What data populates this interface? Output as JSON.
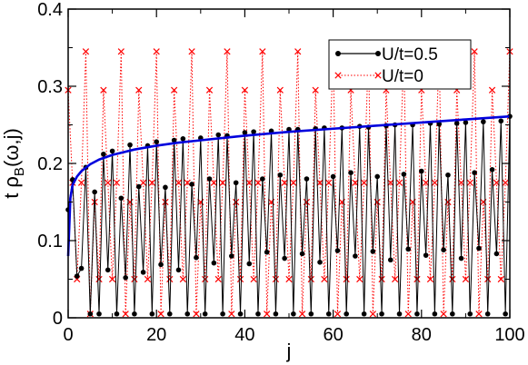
{
  "chart_data": {
    "type": "line",
    "xlabel": "j",
    "ylabel": {
      "t": "t ρ",
      "sub": "B",
      "rest": "(ω,j)"
    },
    "xlim": [
      0,
      100
    ],
    "ylim": [
      0,
      0.4
    ],
    "xticks": [
      0,
      20,
      40,
      60,
      80,
      100
    ],
    "xtick_labels": [
      "0",
      "20",
      "40",
      "60",
      "80",
      "100"
    ],
    "yticks": [
      0,
      0.1,
      0.2,
      0.3,
      0.4
    ],
    "ytick_labels": [
      "0",
      "0.1",
      "0.2",
      "0.3",
      "0.4"
    ],
    "grid": false,
    "legend_position": "top-right",
    "series": [
      {
        "name": "U/t=0.5",
        "color": "#000000",
        "style": "solid line with filled circles",
        "x": [
          0,
          1,
          2,
          3,
          4,
          5,
          6,
          7,
          8,
          9,
          10,
          11,
          12,
          13,
          14,
          15,
          16,
          17,
          18,
          19,
          20,
          21,
          22,
          23,
          24,
          25,
          26,
          27,
          28,
          29,
          30,
          31,
          32,
          33,
          34,
          35,
          36,
          37,
          38,
          39,
          40,
          41,
          42,
          43,
          44,
          45,
          46,
          47,
          48,
          49,
          50,
          51,
          52,
          53,
          54,
          55,
          56,
          57,
          58,
          59,
          60,
          61,
          62,
          63,
          64,
          65,
          66,
          67,
          68,
          69,
          70,
          71,
          72,
          73,
          74,
          75,
          76,
          77,
          78,
          79,
          80,
          81,
          82,
          83,
          84,
          85,
          86,
          87,
          88,
          89,
          90,
          91,
          92,
          93,
          94,
          95,
          96,
          97,
          98,
          99,
          100
        ],
        "y": [
          0.14,
          0.179,
          0.054,
          0.064,
          0.195,
          0.005,
          0.163,
          0.005,
          0.212,
          0.062,
          0.216,
          0.005,
          0.155,
          0.052,
          0.224,
          0.005,
          0.17,
          0.059,
          0.223,
          0.005,
          0.228,
          0.069,
          0.169,
          0.005,
          0.23,
          0.062,
          0.232,
          0.005,
          0.173,
          0.078,
          0.233,
          0.005,
          0.18,
          0.071,
          0.237,
          0.005,
          0.236,
          0.08,
          0.175,
          0.005,
          0.24,
          0.07,
          0.241,
          0.005,
          0.18,
          0.085,
          0.242,
          0.005,
          0.185,
          0.077,
          0.244,
          0.005,
          0.244,
          0.083,
          0.18,
          0.005,
          0.245,
          0.072,
          0.246,
          0.005,
          0.183,
          0.087,
          0.246,
          0.005,
          0.188,
          0.08,
          0.248,
          0.005,
          0.247,
          0.086,
          0.183,
          0.005,
          0.249,
          0.075,
          0.25,
          0.005,
          0.186,
          0.089,
          0.25,
          0.005,
          0.19,
          0.081,
          0.252,
          0.005,
          0.251,
          0.088,
          0.185,
          0.005,
          0.252,
          0.077,
          0.253,
          0.005,
          0.188,
          0.09,
          0.254,
          0.005,
          0.192,
          0.083,
          0.255,
          0.005,
          0.261
        ]
      },
      {
        "name": "U/t=0",
        "color": "#ff0000",
        "style": "dotted line with x markers",
        "x": [
          0,
          1,
          2,
          3,
          4,
          5,
          6,
          7,
          8,
          9,
          10,
          11,
          12,
          13,
          14,
          15,
          16,
          17,
          18,
          19,
          20,
          21,
          22,
          23,
          24,
          25,
          26,
          27,
          28,
          29,
          30,
          31,
          32,
          33,
          34,
          35,
          36,
          37,
          38,
          39,
          40,
          41,
          42,
          43,
          44,
          45,
          46,
          47,
          48,
          49,
          50,
          51,
          52,
          53,
          54,
          55,
          56,
          57,
          58,
          59,
          60,
          61,
          62,
          63,
          64,
          65,
          66,
          67,
          68,
          69,
          70,
          71,
          72,
          73,
          74,
          75,
          76,
          77,
          78,
          79,
          80,
          81,
          82,
          83,
          84,
          85,
          86,
          87,
          88,
          89,
          90,
          91,
          92,
          93,
          94,
          95,
          96,
          97,
          98,
          99,
          100
        ],
        "y": [
          0.295,
          0.175,
          0.05,
          0.175,
          0.345,
          0.005,
          0.15,
          0.05,
          0.295,
          0.175,
          0.05,
          0.175,
          0.345,
          0.005,
          0.15,
          0.05,
          0.295,
          0.175,
          0.05,
          0.175,
          0.345,
          0.005,
          0.15,
          0.05,
          0.295,
          0.175,
          0.05,
          0.175,
          0.345,
          0.005,
          0.15,
          0.05,
          0.295,
          0.175,
          0.05,
          0.175,
          0.345,
          0.005,
          0.15,
          0.05,
          0.295,
          0.175,
          0.05,
          0.175,
          0.345,
          0.005,
          0.15,
          0.05,
          0.295,
          0.175,
          0.05,
          0.175,
          0.345,
          0.005,
          0.15,
          0.05,
          0.295,
          0.175,
          0.05,
          0.175,
          0.345,
          0.005,
          0.15,
          0.05,
          0.295,
          0.175,
          0.05,
          0.175,
          0.345,
          0.005,
          0.15,
          0.05,
          0.295,
          0.175,
          0.05,
          0.175,
          0.345,
          0.005,
          0.15,
          0.05,
          0.295,
          0.175,
          0.05,
          0.175,
          0.345,
          0.005,
          0.15,
          0.05,
          0.295,
          0.175,
          0.05,
          0.175,
          0.345,
          0.005,
          0.15,
          0.05,
          0.295,
          0.175,
          0.05,
          0.175,
          0.345
        ]
      },
      {
        "color": "#0000dd",
        "style": "solid thick envelope curve",
        "x": [
          0,
          0.5,
          1,
          2,
          3,
          5,
          7,
          10,
          15,
          20,
          25,
          30,
          40,
          50,
          60,
          70,
          80,
          90,
          100
        ],
        "y": [
          0.08,
          0.155,
          0.172,
          0.183,
          0.19,
          0.199,
          0.205,
          0.211,
          0.218,
          0.223,
          0.227,
          0.23,
          0.236,
          0.241,
          0.245,
          0.249,
          0.253,
          0.257,
          0.261
        ]
      }
    ]
  }
}
